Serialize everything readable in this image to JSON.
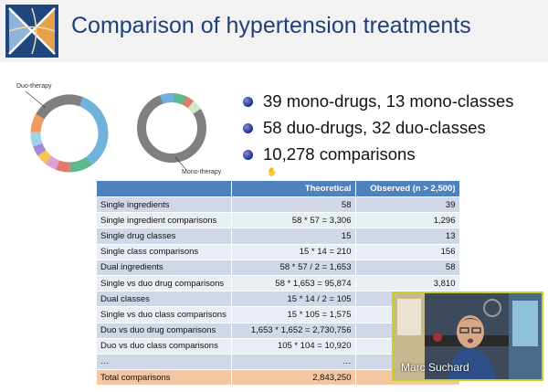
{
  "slide": {
    "title": "Comparison of hypertension treatments",
    "donut_labels": {
      "duo": "Duo-therapy",
      "mono": "Mono-therapy"
    },
    "bullets": [
      "39 mono-drugs, 13 mono-classes",
      "58 duo-drugs, 32 duo-classes",
      "10,278 comparisons"
    ],
    "colors": {
      "title": "#1f3f7a",
      "table_header": "#4f81bd",
      "total_row": "#f4c7a2",
      "bullet": "#1b2a8a"
    }
  },
  "table": {
    "headers": [
      "",
      "Theoretical",
      "Observed (n > 2,500)"
    ],
    "rows": [
      [
        "Single ingredients",
        "58",
        "39"
      ],
      [
        "Single ingredient comparisons",
        "58 * 57 = 3,306",
        "1,296"
      ],
      [
        "Single drug classes",
        "15",
        "13"
      ],
      [
        "Single class comparisons",
        "15 * 14 = 210",
        "156"
      ],
      [
        "Dual ingredients",
        "58 * 57 / 2 = 1,653",
        "58"
      ],
      [
        "Single vs duo drug comparisons",
        "58 * 1,653 = 95,874",
        "3,810"
      ],
      [
        "Dual classes",
        "15 * 14 / 2  = 105",
        ""
      ],
      [
        "Single vs duo class comparisons",
        "15 * 105 = 1,575",
        ""
      ],
      [
        "Duo vs duo drug comparisons",
        "1,653 * 1,652 = 2,730,756",
        ""
      ],
      [
        "Duo vs duo class comparisons",
        "105 * 104 = 10,920",
        ""
      ],
      [
        "…",
        "…",
        ""
      ],
      [
        "Total comparisons",
        "2,843,250",
        ""
      ]
    ]
  },
  "video": {
    "name": "Marc Suchard"
  }
}
